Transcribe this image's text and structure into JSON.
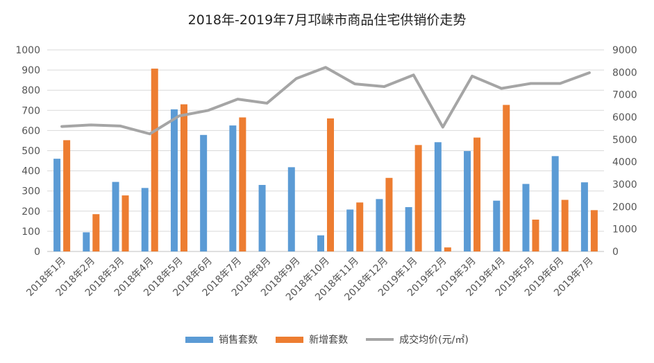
{
  "chart_data": {
    "type": "bar",
    "title": "2018年-2019年7月邛崃市商品住宅供销价走势",
    "categories": [
      "2018年1月",
      "2018年2月",
      "2018年3月",
      "2018年4月",
      "2018年5月",
      "2018年6月",
      "2018年7月",
      "2018年8月",
      "2018年9月",
      "2018年10月",
      "2018年11月",
      "2018年12月",
      "2019年1月",
      "2019年2月",
      "2019年3月",
      "2019年4月",
      "2019年5月",
      "2019年6月",
      "2019年7月"
    ],
    "series": [
      {
        "name": "销售套数",
        "type": "bar",
        "axis": "left",
        "color": "#5B9BD5",
        "values": [
          460,
          95,
          345,
          315,
          705,
          578,
          625,
          330,
          418,
          80,
          208,
          260,
          220,
          542,
          498,
          252,
          335,
          473,
          343
        ]
      },
      {
        "name": "新增套数",
        "type": "bar",
        "axis": "left",
        "color": "#ED7D31",
        "values": [
          552,
          185,
          278,
          907,
          730,
          null,
          665,
          null,
          null,
          660,
          243,
          365,
          528,
          20,
          565,
          727,
          158,
          256,
          205
        ]
      },
      {
        "name": "成交均价(元/㎡)",
        "type": "line",
        "axis": "right",
        "color": "#A5A5A5",
        "values": [
          5580,
          5650,
          5600,
          5250,
          6050,
          6300,
          6800,
          6620,
          7720,
          8220,
          7480,
          7360,
          7880,
          5550,
          7830,
          7280,
          7500,
          7500,
          7980
        ]
      }
    ],
    "left_axis": {
      "ylim": [
        0,
        1000
      ],
      "ticks": [
        0,
        100,
        200,
        300,
        400,
        500,
        600,
        700,
        800,
        900,
        1000
      ]
    },
    "right_axis": {
      "ylim": [
        0,
        9000
      ],
      "ticks": [
        0,
        1000,
        2000,
        3000,
        4000,
        5000,
        6000,
        7000,
        8000,
        9000
      ]
    },
    "grid": true,
    "legend_position": "bottom"
  }
}
